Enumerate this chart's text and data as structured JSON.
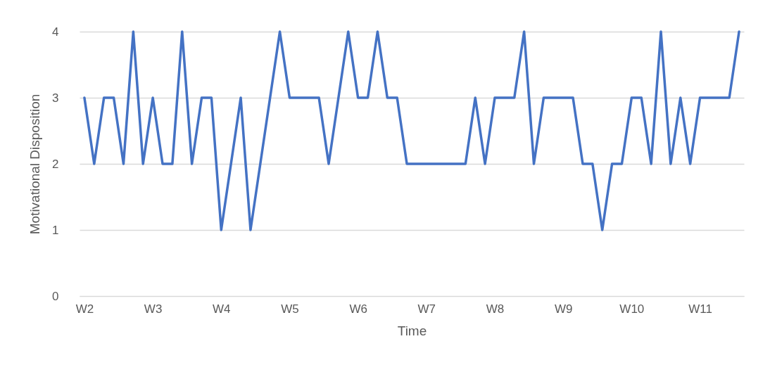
{
  "chart_data": {
    "type": "line",
    "xlabel": "Time",
    "ylabel": "Motivational Disposition",
    "categories": [
      "W2",
      null,
      null,
      null,
      null,
      null,
      null,
      "W3",
      null,
      null,
      null,
      null,
      null,
      null,
      "W4",
      null,
      null,
      null,
      null,
      null,
      null,
      "W5",
      null,
      null,
      null,
      null,
      null,
      null,
      "W6",
      null,
      null,
      null,
      null,
      null,
      null,
      "W7",
      null,
      null,
      null,
      null,
      null,
      null,
      "W8",
      null,
      null,
      null,
      null,
      null,
      null,
      "W9",
      null,
      null,
      null,
      null,
      null,
      null,
      "W10",
      null,
      null,
      null,
      null,
      null,
      null,
      "W11",
      null,
      null,
      null,
      null
    ],
    "series": [
      {
        "color": "#4472c4",
        "values": [
          3,
          2,
          3,
          3,
          2,
          4,
          2,
          3,
          2,
          2,
          4,
          2,
          3,
          3,
          1,
          2,
          3,
          1,
          2,
          3,
          4,
          3,
          3,
          3,
          3,
          2,
          3,
          4,
          3,
          3,
          4,
          3,
          3,
          2,
          2,
          2,
          2,
          2,
          2,
          2,
          3,
          2,
          3,
          3,
          3,
          4,
          2,
          3,
          3,
          3,
          3,
          2,
          2,
          1,
          2,
          2,
          3,
          3,
          2,
          4,
          2,
          3,
          2,
          3,
          3,
          3,
          3,
          4
        ]
      }
    ],
    "ylim": [
      0,
      4
    ],
    "yticks": [
      0,
      1,
      2,
      3,
      4
    ],
    "grid": "y",
    "legend": false,
    "marker": "none",
    "line_style": "solid"
  }
}
